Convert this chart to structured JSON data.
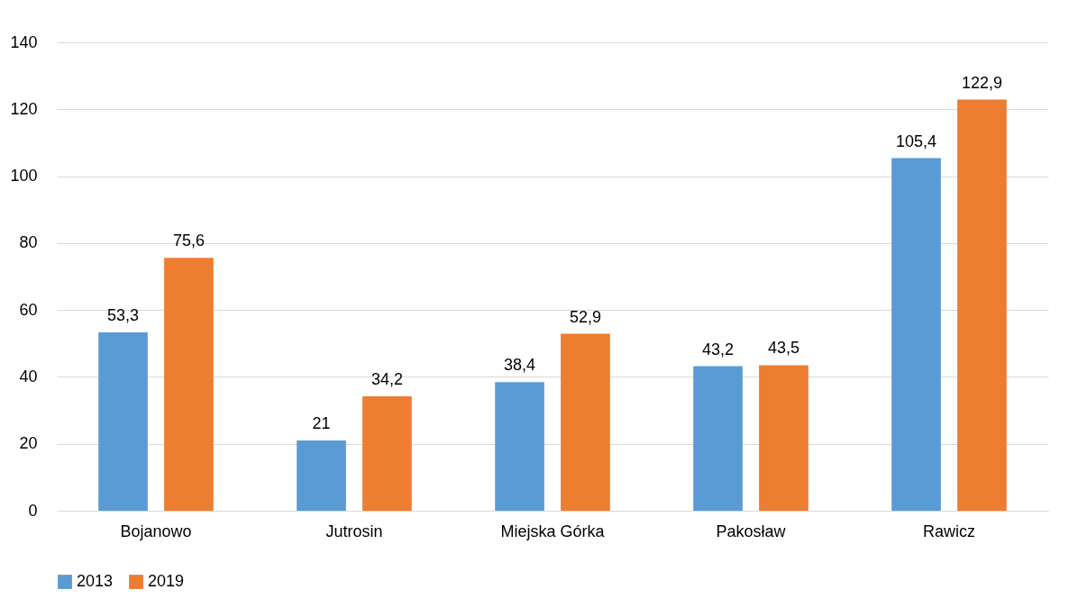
{
  "chart_data": {
    "type": "bar",
    "categories": [
      "Bojanowo",
      "Jutrosin",
      "Miejska Górka",
      "Pakosław",
      "Rawicz"
    ],
    "series": [
      {
        "name": "2013",
        "color": "#5b9bd5",
        "values": [
          53.3,
          21,
          38.4,
          43.2,
          105.4
        ],
        "value_labels": [
          "53,3",
          "21",
          "38,4",
          "43,2",
          "105,4"
        ]
      },
      {
        "name": "2019",
        "color": "#ed7d31",
        "values": [
          75.6,
          34.2,
          52.9,
          43.5,
          122.9
        ],
        "value_labels": [
          "75,6",
          "34,2",
          "52,9",
          "43,5",
          "122,9"
        ]
      }
    ],
    "ylim": [
      0,
      140
    ],
    "yticks": [
      0,
      20,
      40,
      60,
      80,
      100,
      120,
      140
    ],
    "grid": "y",
    "legend": "bottom"
  }
}
